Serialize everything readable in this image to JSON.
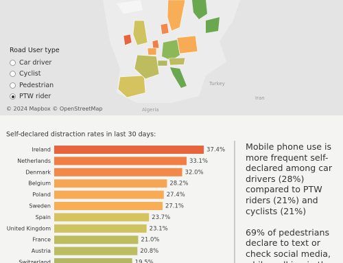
{
  "map": {
    "places": [
      "Turkey",
      "Algeria",
      "Iran"
    ],
    "credit": "© 2024 Mapbox © OpenStreetMap"
  },
  "filter": {
    "title": "Road User type",
    "options": [
      "Car driver",
      "Cyclist",
      "Pedestrian",
      "PTW rider"
    ],
    "selected": 3
  },
  "chart_data": {
    "type": "hbar",
    "title": "Self-declared distraction rates in last 30 days:",
    "categories": [
      "Ireland",
      "Netherlands",
      "Denmark",
      "Belgium",
      "Poland",
      "Sweden",
      "Spain",
      "United Kingdom",
      "France",
      "Austria",
      "Switzerland"
    ],
    "values": [
      37.4,
      33.1,
      32.0,
      28.2,
      27.4,
      27.1,
      23.7,
      23.1,
      21.0,
      20.8,
      19.5
    ],
    "value_labels": [
      "37.4%",
      "33.1%",
      "32.0%",
      "28.2%",
      "27.4%",
      "27.1%",
      "23.7%",
      "23.1%",
      "21.0%",
      "20.8%",
      "19.5%"
    ],
    "colors": [
      "#e8643c",
      "#f07f45",
      "#f2894a",
      "#f6a553",
      "#f7ab55",
      "#f8ae56",
      "#d4c35e",
      "#cfc35f",
      "#bdbd5f",
      "#bcbc60",
      "#b2b862"
    ]
  },
  "panel": {
    "paragraphs": [
      "Mobile phone use is more frequent self-declared among car drivers (28%) compared to PTW riders (21%) and cyclists (21%)",
      "69% of pedestrians declare to text or check social media, while walking in the"
    ]
  }
}
